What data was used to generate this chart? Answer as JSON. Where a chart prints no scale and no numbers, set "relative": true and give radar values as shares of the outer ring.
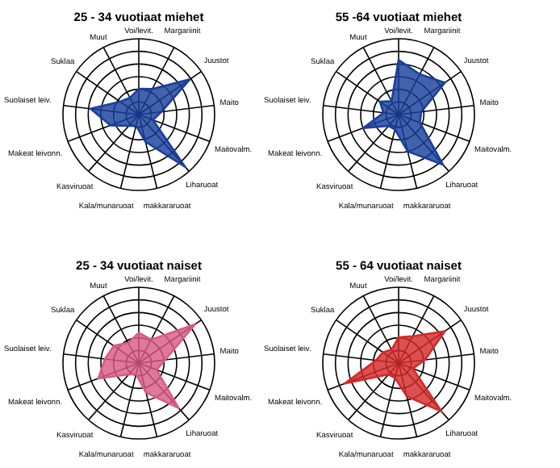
{
  "chart_data": [
    {
      "type": "radar",
      "title": "25 - 34 vuotiaat miehet",
      "relative": true,
      "grid": true,
      "categories": [
        "Voi/levit.",
        "Margariinit",
        "Juustot",
        "Maito",
        "Maitovalm.",
        "Liharuoat",
        "makkararuoat",
        "Kala/munaruoat",
        "Kasviruoat",
        "Makeat leivonn.",
        "Suolaiset leiv.",
        "Suklaa",
        "Muut"
      ],
      "series": [
        {
          "color": "#1a3f9c",
          "values": [
            0.34,
            0.38,
            0.82,
            0.3,
            0.2,
            0.92,
            0.37,
            0.15,
            0.2,
            0.4,
            0.64,
            0.3,
            0.25
          ]
        }
      ]
    },
    {
      "type": "radar",
      "title": "55 -64 vuotiaat miehet",
      "relative": true,
      "grid": true,
      "categories": [
        "Voi/levit.",
        "Margariinit",
        "Juustot",
        "Maito",
        "Maitovalm.",
        "Liharuoat",
        "makkararuoat",
        "Kala/munaruoat",
        "Kasviruoat",
        "Makeat leivonn.",
        "Suolaiset leiv.",
        "Suklaa",
        "Muut"
      ],
      "series": [
        {
          "color": "#1a3f9c",
          "values": [
            0.72,
            0.6,
            0.74,
            0.3,
            0.3,
            0.88,
            0.5,
            0.2,
            0.2,
            0.5,
            0.2,
            0.3,
            0.2
          ]
        }
      ]
    },
    {
      "type": "radar",
      "title": "25 - 34 vuotiaat naiset",
      "relative": true,
      "grid": true,
      "categories": [
        "Voi/levit.",
        "Margariinit",
        "Juustot",
        "Maito",
        "Maitovalm.",
        "Liharuoat",
        "makkararuoat",
        "Kala/munaruoat",
        "Kasviruoat",
        "Makeat leivonn.",
        "Suolaiset leiv.",
        "Suklaa",
        "Muut"
      ],
      "series": [
        {
          "color": "#d95a86",
          "values": [
            0.4,
            0.35,
            0.9,
            0.35,
            0.25,
            0.79,
            0.4,
            0.15,
            0.2,
            0.57,
            0.45,
            0.4,
            0.3
          ]
        }
      ]
    },
    {
      "type": "radar",
      "title": "55 - 64 vuotiaat naiset",
      "relative": true,
      "grid": true,
      "categories": [
        "Voi/levit.",
        "Margariinit",
        "Juustot",
        "Maito",
        "Maitovalm.",
        "Liharuoat",
        "makkararuoat",
        "Kala/munaruoat",
        "Kasviruoat",
        "Makeat leivonn.",
        "Suolaiset leiv.",
        "Suklaa",
        "Muut"
      ],
      "series": [
        {
          "color": "#d42a2a",
          "values": [
            0.34,
            0.4,
            0.74,
            0.35,
            0.2,
            0.85,
            0.45,
            0.2,
            0.2,
            0.76,
            0.3,
            0.25,
            0.2
          ]
        }
      ]
    }
  ]
}
